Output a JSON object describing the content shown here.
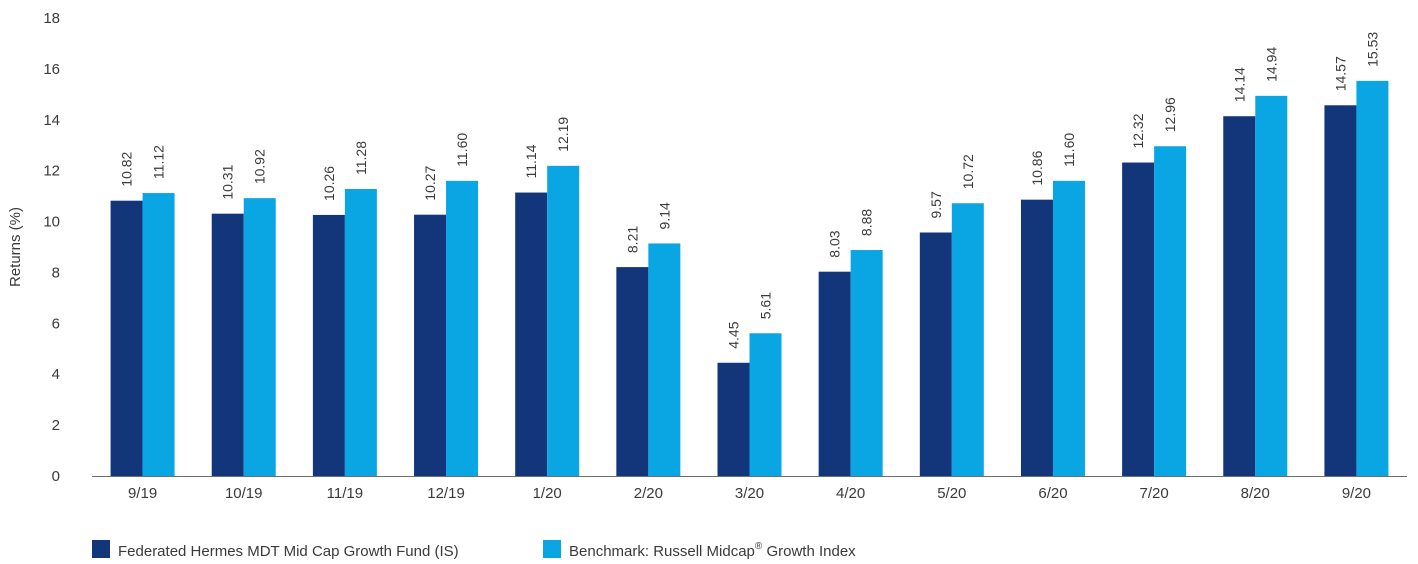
{
  "chart_data": {
    "type": "bar",
    "title": "",
    "xlabel": "",
    "ylabel": "Returns (%)",
    "ylim": [
      0,
      18
    ],
    "yticks": [
      0,
      2,
      4,
      6,
      8,
      10,
      12,
      14,
      16,
      18
    ],
    "grid": false,
    "legend_position": "bottom-left",
    "categories": [
      "9/19",
      "10/19",
      "11/19",
      "12/19",
      "1/20",
      "2/20",
      "3/20",
      "4/20",
      "5/20",
      "6/20",
      "7/20",
      "8/20",
      "9/20"
    ],
    "series": [
      {
        "name": "Federated Hermes MDT Mid Cap Growth Fund (IS)",
        "color": "#13357a",
        "values": [
          10.82,
          10.31,
          10.26,
          10.27,
          11.14,
          8.21,
          4.45,
          8.03,
          9.57,
          10.86,
          12.32,
          14.14,
          14.57
        ],
        "labels": [
          "10.82",
          "10.31",
          "10.26",
          "10.27",
          "11.14",
          "8.21",
          "4.45",
          "8.03",
          "9.57",
          "10.86",
          "12.32",
          "14.14",
          "14.57"
        ]
      },
      {
        "name": "Benchmark: Russell Midcap",
        "name_sup": "®",
        "name_suffix": " Growth Index",
        "color": "#0aa6e3",
        "values": [
          11.12,
          10.92,
          11.28,
          11.6,
          12.19,
          9.14,
          5.61,
          8.88,
          10.72,
          11.6,
          12.96,
          14.94,
          15.53
        ],
        "labels": [
          "11.12",
          "10.92",
          "11.28",
          "11.60",
          "12.19",
          "9.14",
          "5.61",
          "8.88",
          "10.72",
          "11.60",
          "12.96",
          "14.94",
          "15.53"
        ]
      }
    ]
  }
}
